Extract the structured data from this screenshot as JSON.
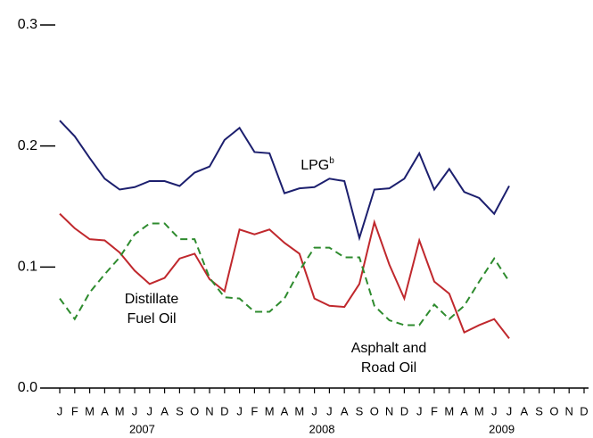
{
  "chart_data": {
    "type": "line",
    "categories": [
      "J",
      "F",
      "M",
      "A",
      "M",
      "J",
      "J",
      "A",
      "S",
      "O",
      "N",
      "D",
      "J",
      "F",
      "M",
      "A",
      "M",
      "J",
      "J",
      "A",
      "S",
      "O",
      "N",
      "D",
      "J",
      "F",
      "M",
      "A",
      "M",
      "J",
      "J",
      "A",
      "S",
      "O",
      "N",
      "D"
    ],
    "years": [
      "2007",
      "2008",
      "2009"
    ],
    "ylim": [
      0,
      0.3
    ],
    "yticks": [
      {
        "value": 0,
        "label": "0.0"
      },
      0.1,
      0.2,
      0.3
    ],
    "series": [
      {
        "label": [
          "LPG"
        ],
        "footnote": "b",
        "color": "#1c1f6e",
        "dashed": false,
        "values": [
          0.221,
          0.208,
          0.19,
          0.173,
          0.164,
          0.166,
          0.171,
          0.171,
          0.167,
          0.178,
          0.183,
          0.205,
          0.215,
          0.195,
          0.194,
          0.161,
          0.165,
          0.166,
          0.173,
          0.171,
          0.124,
          0.164,
          0.165,
          0.173,
          0.194,
          0.164,
          0.181,
          0.162,
          0.157,
          0.144,
          0.167,
          null,
          null,
          null,
          null,
          null
        ]
      },
      {
        "label": [
          "Asphalt and",
          "Road Oil"
        ],
        "color": "#c0282d",
        "dashed": false,
        "values": [
          0.144,
          0.132,
          0.123,
          0.122,
          0.112,
          0.097,
          0.086,
          0.091,
          0.107,
          0.111,
          0.09,
          0.08,
          0.131,
          0.127,
          0.131,
          0.12,
          0.111,
          0.074,
          0.068,
          0.067,
          0.086,
          0.137,
          0.102,
          0.074,
          0.122,
          0.088,
          0.078,
          0.046,
          0.052,
          0.057,
          0.041,
          null,
          null,
          null,
          null,
          null
        ]
      },
      {
        "label": [
          "Distillate",
          "Fuel Oil"
        ],
        "color": "#2e8b2e",
        "dashed": true,
        "values": [
          0.074,
          0.057,
          0.079,
          0.094,
          0.108,
          0.127,
          0.136,
          0.136,
          0.123,
          0.123,
          0.091,
          0.075,
          0.074,
          0.063,
          0.063,
          0.074,
          0.097,
          0.116,
          0.116,
          0.108,
          0.108,
          0.068,
          0.056,
          0.052,
          0.052,
          0.069,
          0.057,
          0.068,
          0.088,
          0.107,
          0.088,
          null,
          null,
          null,
          null,
          null
        ]
      }
    ]
  }
}
